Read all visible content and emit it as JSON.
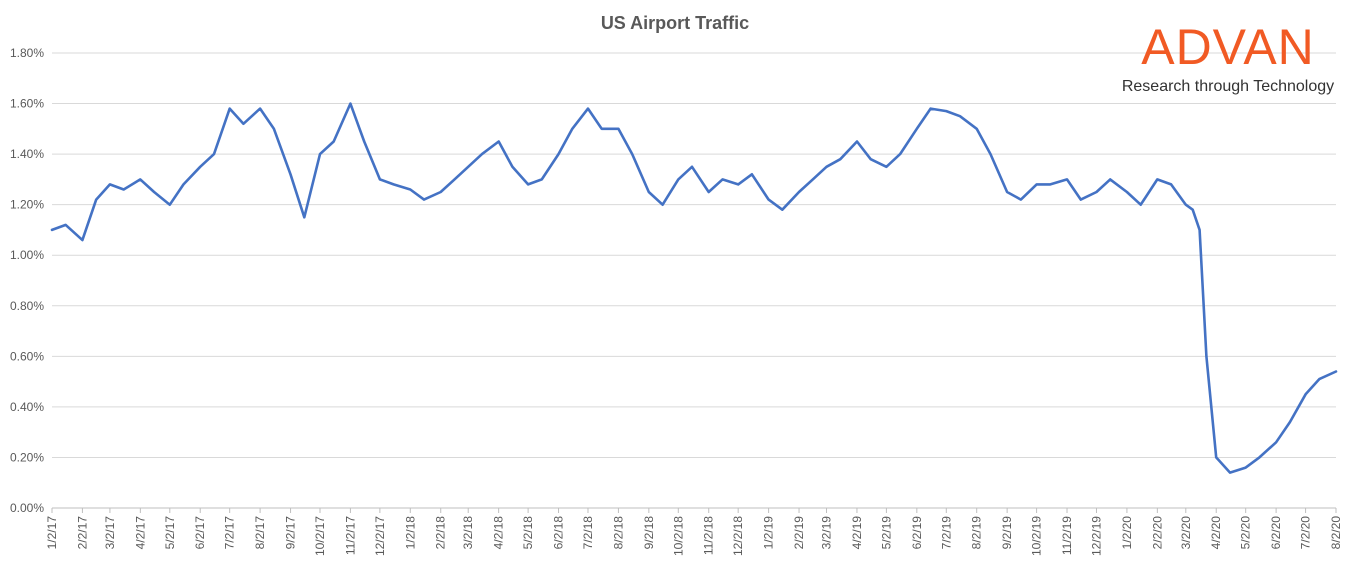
{
  "logo": {
    "word": "ADVAN",
    "tagline": "Research through Technology",
    "color": "#f15a24"
  },
  "chart_data": {
    "type": "line",
    "title": "US Airport Traffic",
    "xlabel": "",
    "ylabel": "",
    "ylim": [
      0,
      0.018
    ],
    "y_tick_format": "percent_2dp",
    "y_ticks": [
      "0.00%",
      "0.20%",
      "0.40%",
      "0.60%",
      "0.80%",
      "1.00%",
      "1.20%",
      "1.40%",
      "1.60%",
      "1.80%"
    ],
    "x_ticks": [
      "1/2/17",
      "2/2/17",
      "3/2/17",
      "4/2/17",
      "5/2/17",
      "6/2/17",
      "7/2/17",
      "8/2/17",
      "9/2/17",
      "10/2/17",
      "11/2/17",
      "12/2/17",
      "1/2/18",
      "2/2/18",
      "3/2/18",
      "4/2/18",
      "5/2/18",
      "6/2/18",
      "7/2/18",
      "8/2/18",
      "9/2/18",
      "10/2/18",
      "11/2/18",
      "12/2/18",
      "1/2/19",
      "2/2/19",
      "3/2/19",
      "4/2/19",
      "5/2/19",
      "6/2/19",
      "7/2/19",
      "8/2/19",
      "9/2/19",
      "10/2/19",
      "11/2/19",
      "12/2/19",
      "1/2/20",
      "2/2/20",
      "3/2/20",
      "4/2/20",
      "5/2/20",
      "6/2/20",
      "7/2/20",
      "8/2/20"
    ],
    "grid": true,
    "legend": "none",
    "line_color": "#4472c4",
    "series": [
      {
        "x": [
          "1/2/17",
          "1/16/17",
          "2/2/17",
          "2/16/17",
          "3/2/17",
          "3/16/17",
          "4/2/17",
          "4/16/17",
          "5/2/17",
          "5/16/17",
          "6/2/17",
          "6/16/17",
          "7/2/17",
          "7/16/17",
          "8/2/17",
          "8/16/17",
          "9/2/17",
          "9/16/17",
          "10/2/17",
          "10/16/17",
          "11/2/17",
          "11/16/17",
          "12/2/17",
          "12/16/17",
          "1/2/18",
          "1/16/18",
          "2/2/18",
          "2/16/18",
          "3/2/18",
          "3/16/18",
          "4/2/18",
          "4/16/18",
          "5/2/18",
          "5/16/18",
          "6/2/18",
          "6/16/18",
          "7/2/18",
          "7/16/18",
          "8/2/18",
          "8/16/18",
          "9/2/18",
          "9/16/18",
          "10/2/18",
          "10/16/18",
          "11/2/18",
          "11/16/18",
          "12/2/18",
          "12/16/18",
          "1/2/19",
          "1/16/19",
          "2/2/19",
          "2/16/19",
          "3/2/19",
          "3/16/19",
          "4/2/19",
          "4/16/19",
          "5/2/19",
          "5/16/19",
          "6/2/19",
          "6/16/19",
          "7/2/19",
          "7/16/19",
          "8/2/19",
          "8/16/19",
          "9/2/19",
          "9/16/19",
          "10/2/19",
          "10/16/19",
          "11/2/19",
          "11/16/19",
          "12/2/19",
          "12/16/19",
          "1/2/20",
          "1/16/20",
          "2/2/20",
          "2/16/20",
          "3/2/20",
          "3/9/20",
          "3/16/20",
          "3/23/20",
          "4/2/20",
          "4/16/20",
          "5/2/20",
          "5/16/20",
          "6/2/20",
          "6/16/20",
          "7/2/20",
          "7/16/20",
          "8/2/20"
        ],
        "values": [
          0.011,
          0.0112,
          0.0106,
          0.0122,
          0.0128,
          0.0126,
          0.013,
          0.0125,
          0.012,
          0.0128,
          0.0135,
          0.014,
          0.0158,
          0.0152,
          0.0158,
          0.015,
          0.0132,
          0.0115,
          0.014,
          0.0145,
          0.016,
          0.0145,
          0.013,
          0.0128,
          0.0126,
          0.0122,
          0.0125,
          0.013,
          0.0135,
          0.014,
          0.0145,
          0.0135,
          0.0128,
          0.013,
          0.014,
          0.015,
          0.0158,
          0.015,
          0.015,
          0.014,
          0.0125,
          0.012,
          0.013,
          0.0135,
          0.0125,
          0.013,
          0.0128,
          0.0132,
          0.0122,
          0.0118,
          0.0125,
          0.013,
          0.0135,
          0.0138,
          0.0145,
          0.0138,
          0.0135,
          0.014,
          0.015,
          0.0158,
          0.0157,
          0.0155,
          0.015,
          0.014,
          0.0125,
          0.0122,
          0.0128,
          0.0128,
          0.013,
          0.0122,
          0.0125,
          0.013,
          0.0125,
          0.012,
          0.013,
          0.0128,
          0.012,
          0.0118,
          0.011,
          0.006,
          0.002,
          0.0014,
          0.0016,
          0.002,
          0.0026,
          0.0034,
          0.0045,
          0.0051,
          0.0054
        ]
      }
    ]
  }
}
